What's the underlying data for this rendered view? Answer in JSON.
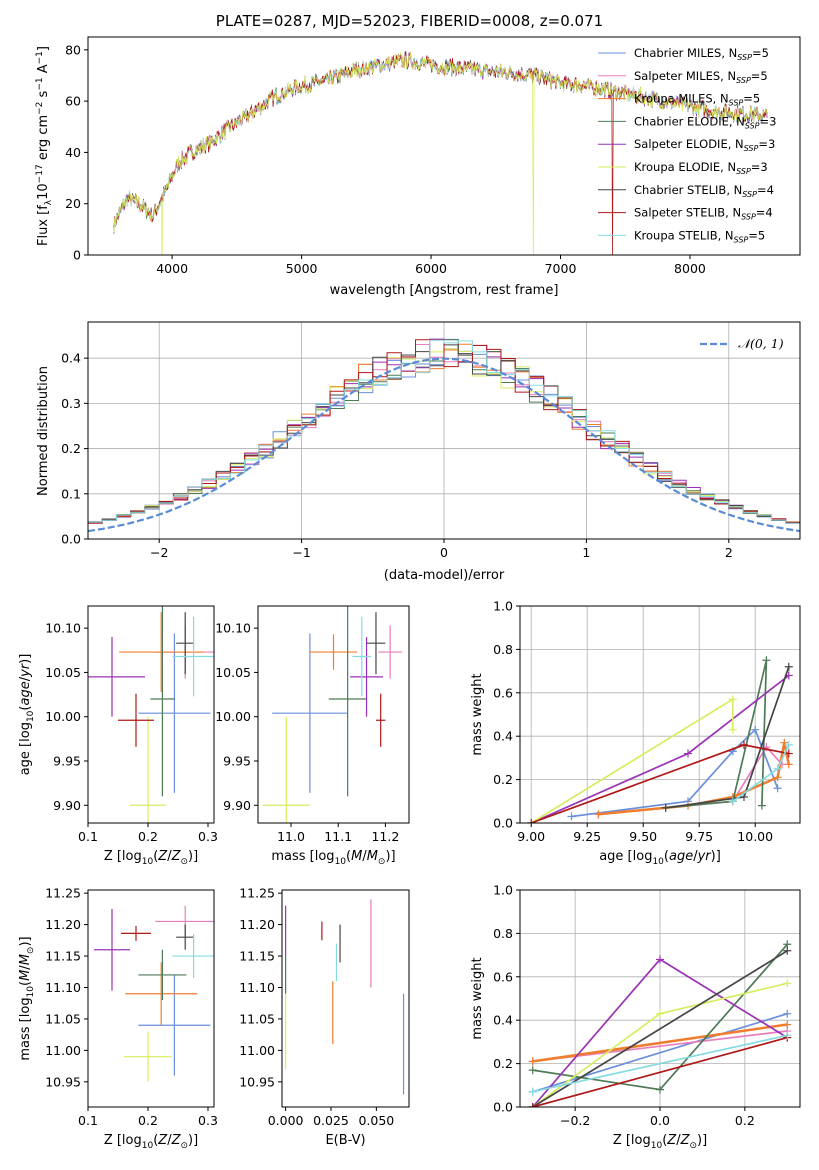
{
  "title": "PLATE=0287, MJD=52023, FIBERID=0008, z=0.071",
  "colors": [
    "#6a8fdb",
    "#e87dbb",
    "#f07d2e",
    "#4e7a55",
    "#9b32b5",
    "#d5ee5e",
    "#454545",
    "#b01818",
    "#86dbe0"
  ],
  "legend_gauss": "N(0,1)",
  "chart_data": [
    {
      "type": "line",
      "id": "spectrum",
      "title": "PLATE=0287, MJD=52023, FIBERID=0008, z=0.071",
      "xlabel": "wavelength [Angstrom, rest frame]",
      "ylabel": "Flux [f_λ 10^-17 erg cm^-2 s^-1 A^-1]",
      "xlim": [
        3350,
        8850
      ],
      "ylim": [
        0,
        85
      ],
      "xticks": [
        4000,
        5000,
        6000,
        7000,
        8000
      ],
      "yticks": [
        0,
        20,
        40,
        60,
        80
      ],
      "grid": false,
      "legend": "top-right",
      "series_names": [
        "Chabrier MILES, N_SSP=5",
        "Salpeter MILES, N_SSP=5",
        "Kroupa MILES, N_SSP=5",
        "Chabrier ELODIE, N_SSP=3",
        "Salpeter ELODIE, N_SSP=3",
        "Kroupa ELODIE, N_SSP=3",
        "Chabrier STELIB, N_SSP=4",
        "Salpeter STELIB, N_SSP=4",
        "Kroupa STELIB, N_SSP=5"
      ],
      "continuum_x": [
        3550,
        3650,
        3750,
        3850,
        3950,
        4050,
        4150,
        4300,
        4450,
        4600,
        4800,
        5000,
        5200,
        5400,
        5600,
        5800,
        6000,
        6200,
        6400,
        6600,
        6800,
        7000,
        7200,
        7400,
        7600,
        7800,
        8000,
        8200,
        8400,
        8600
      ],
      "continuum_y": [
        12,
        22,
        20,
        15,
        25,
        36,
        40,
        44,
        50,
        55,
        62,
        66,
        68,
        72,
        74,
        76,
        74,
        73,
        72,
        71,
        70,
        67,
        66,
        64,
        62,
        60,
        58,
        56,
        55,
        54
      ]
    },
    {
      "type": "histogram",
      "id": "residuals",
      "xlabel": "(data-model)/error",
      "ylabel": "Normed distribution",
      "xlim": [
        -2.5,
        2.5
      ],
      "ylim": [
        0,
        0.48
      ],
      "xticks": [
        -2,
        -1,
        0,
        1,
        2
      ],
      "yticks": [
        0.0,
        0.1,
        0.2,
        0.3,
        0.4
      ],
      "grid": true,
      "legend": "top-right",
      "bin_width": 0.1,
      "reference": {
        "name": "N(0,1)",
        "mean": 0,
        "sigma": 1
      }
    },
    {
      "type": "scatter",
      "id": "age-vs-z",
      "xlabel": "Z [log10(Z/Z⊙)]",
      "ylabel": "age [log10(age/yr)]",
      "xlim": [
        0.1,
        0.31
      ],
      "ylim": [
        9.88,
        10.125
      ],
      "xticks": [
        0.1,
        0.2,
        0.3
      ],
      "yticks": [
        9.9,
        9.95,
        10.0,
        10.05,
        10.1
      ],
      "points": [
        {
          "x": 0.244,
          "y": 10.004,
          "xerr": 0.06,
          "yerr": 0.09
        },
        {
          "x": 0.262,
          "y": 10.073,
          "xerr": 0.05,
          "yerr": 0.03
        },
        {
          "x": 0.222,
          "y": 10.073,
          "xerr": 0.07,
          "yerr": 0.045
        },
        {
          "x": 0.224,
          "y": 10.02,
          "xerr": 0.02,
          "yerr": 0.11
        },
        {
          "x": 0.14,
          "y": 10.045,
          "xerr": 0.055,
          "yerr": 0.045
        },
        {
          "x": 0.2,
          "y": 9.9,
          "xerr": 0.03,
          "yerr": 0.1
        },
        {
          "x": 0.262,
          "y": 10.083,
          "xerr": 0.015,
          "yerr": 0.035
        },
        {
          "x": 0.18,
          "y": 9.996,
          "xerr": 0.03,
          "yerr": 0.03
        },
        {
          "x": 0.276,
          "y": 10.068,
          "xerr": 0.035,
          "yerr": 0.045
        }
      ]
    },
    {
      "type": "scatter",
      "id": "age-vs-mass",
      "xlabel": "mass [log10(M/M⊙)]",
      "xlim": [
        10.93,
        11.25
      ],
      "ylim": [
        9.88,
        10.125
      ],
      "xticks": [
        11.0,
        11.1,
        11.2
      ],
      "yticks": [
        9.9,
        9.95,
        10.0,
        10.05,
        10.1
      ],
      "points": [
        {
          "x": 11.04,
          "y": 10.004,
          "xerr": 0.08,
          "yerr": 0.09
        },
        {
          "x": 11.21,
          "y": 10.073,
          "xerr": 0.025,
          "yerr": 0.03
        },
        {
          "x": 11.09,
          "y": 10.073,
          "xerr": 0.05,
          "yerr": 0.02
        },
        {
          "x": 11.12,
          "y": 10.02,
          "xerr": 0.04,
          "yerr": 0.11
        },
        {
          "x": 11.16,
          "y": 10.045,
          "xerr": 0.035,
          "yerr": 0.045
        },
        {
          "x": 10.99,
          "y": 9.9,
          "xerr": 0.05,
          "yerr": 0.1
        },
        {
          "x": 11.18,
          "y": 10.083,
          "xerr": 0.02,
          "yerr": 0.035
        },
        {
          "x": 11.19,
          "y": 9.996,
          "xerr": 0.01,
          "yerr": 0.03
        },
        {
          "x": 11.15,
          "y": 10.068,
          "xerr": 0.02,
          "yerr": 0.045
        }
      ]
    },
    {
      "type": "line",
      "id": "mass-weight-vs-age",
      "xlabel": "age [log10(age/yr)]",
      "ylabel": "mass weight",
      "xlim": [
        8.95,
        10.2
      ],
      "ylim": [
        0,
        1.0
      ],
      "xticks": [
        9.0,
        9.25,
        9.5,
        9.75,
        10.0
      ],
      "yticks": [
        0.0,
        0.2,
        0.4,
        0.6,
        0.8,
        1.0
      ],
      "xtick_labels": [
        "9.00",
        "9.25",
        "9.50",
        "9.75",
        "10.00"
      ],
      "grid": true,
      "series": [
        {
          "x": [
            9.18,
            9.7,
            9.9,
            10.0,
            10.1
          ],
          "y": [
            0.03,
            0.1,
            0.33,
            0.43,
            0.16
          ]
        },
        {
          "x": [
            9.3,
            9.6,
            9.9,
            10.05,
            10.12
          ],
          "y": [
            0.04,
            0.07,
            0.1,
            0.35,
            0.27
          ]
        },
        {
          "x": [
            9.3,
            9.7,
            9.9,
            10.1,
            10.13,
            10.15
          ],
          "y": [
            0.04,
            0.08,
            0.12,
            0.21,
            0.37,
            0.27
          ]
        },
        {
          "x": [
            9.6,
            9.9,
            10.05,
            10.03
          ],
          "y": [
            0.07,
            0.1,
            0.75,
            0.08
          ]
        },
        {
          "x": [
            9.0,
            9.7,
            10.15
          ],
          "y": [
            0.0,
            0.32,
            0.68
          ]
        },
        {
          "x": [
            9.0,
            9.9,
            9.9
          ],
          "y": [
            0.0,
            0.57,
            0.43
          ]
        },
        {
          "x": [
            9.6,
            9.95,
            10.15
          ],
          "y": [
            0.07,
            0.12,
            0.72
          ]
        },
        {
          "x": [
            9.0,
            9.95,
            10.15
          ],
          "y": [
            0.0,
            0.36,
            0.32
          ]
        },
        {
          "x": [
            9.9,
            10.1,
            10.15
          ],
          "y": [
            0.1,
            0.25,
            0.36
          ]
        }
      ]
    },
    {
      "type": "scatter",
      "id": "mass-vs-z",
      "xlabel": "Z [log10(Z/Z⊙)]",
      "ylabel": "mass [log10(M/M⊙)]",
      "xlim": [
        0.1,
        0.31
      ],
      "ylim": [
        10.91,
        11.255
      ],
      "xticks": [
        0.1,
        0.2,
        0.3
      ],
      "yticks": [
        10.95,
        11.0,
        11.05,
        11.1,
        11.15,
        11.2,
        11.25
      ],
      "points": [
        {
          "x": 0.244,
          "y": 11.04,
          "xerr": 0.06,
          "yerr": 0.08
        },
        {
          "x": 0.262,
          "y": 11.205,
          "xerr": 0.05,
          "yerr": 0.025
        },
        {
          "x": 0.222,
          "y": 11.09,
          "xerr": 0.06,
          "yerr": 0.05
        },
        {
          "x": 0.224,
          "y": 11.12,
          "xerr": 0.04,
          "yerr": 0.04
        },
        {
          "x": 0.14,
          "y": 11.16,
          "xerr": 0.03,
          "yerr": 0.065
        },
        {
          "x": 0.2,
          "y": 10.99,
          "xerr": 0.04,
          "yerr": 0.04
        },
        {
          "x": 0.262,
          "y": 11.18,
          "xerr": 0.015,
          "yerr": 0.02
        },
        {
          "x": 0.18,
          "y": 11.186,
          "xerr": 0.025,
          "yerr": 0.012
        },
        {
          "x": 0.276,
          "y": 11.15,
          "xerr": 0.035,
          "yerr": 0.035
        }
      ]
    },
    {
      "type": "scatter",
      "id": "mass-vs-ebv",
      "xlabel": "E(B-V)",
      "xlim": [
        -0.002,
        0.068
      ],
      "ylim": [
        10.91,
        11.255
      ],
      "xticks": [
        0.0,
        0.025,
        0.05
      ],
      "yticks": [
        10.95,
        11.0,
        11.05,
        11.1,
        11.15,
        11.2,
        11.25
      ],
      "xtick_labels": [
        "0.000",
        "0.025",
        "0.050"
      ],
      "points": [
        {
          "x": 0.065,
          "y": 11.01,
          "yerr": 0.08
        },
        {
          "x": 0.047,
          "y": 11.17,
          "yerr": 0.07
        },
        {
          "x": 0.026,
          "y": 11.06,
          "yerr": 0.05
        },
        {
          "x": 0.0,
          "y": 11.12,
          "yerr": 0.03
        },
        {
          "x": 0.0,
          "y": 11.19,
          "yerr": 0.04
        },
        {
          "x": 0.0,
          "y": 11.03,
          "yerr": 0.06
        },
        {
          "x": 0.03,
          "y": 11.17,
          "yerr": 0.03
        },
        {
          "x": 0.02,
          "y": 11.19,
          "yerr": 0.015
        },
        {
          "x": 0.028,
          "y": 11.14,
          "yerr": 0.03
        }
      ]
    },
    {
      "type": "line",
      "id": "mass-weight-vs-z",
      "xlabel": "Z [log10(Z/Z⊙)]",
      "ylabel": "mass weight",
      "xlim": [
        -0.33,
        0.33
      ],
      "ylim": [
        0,
        1.0
      ],
      "xticks": [
        -0.2,
        0.0,
        0.2
      ],
      "yticks": [
        0.0,
        0.2,
        0.4,
        0.6,
        0.8,
        1.0
      ],
      "xtick_labels": [
        "−0.2",
        "0.0",
        "0.2"
      ],
      "grid": true,
      "series": [
        {
          "x": [
            -0.3,
            0.3
          ],
          "y": [
            0.07,
            0.43
          ]
        },
        {
          "x": [
            -0.3,
            0.3
          ],
          "y": [
            0.21,
            0.35
          ]
        },
        {
          "x": [
            -0.3,
            0.3
          ],
          "y": [
            0.21,
            0.38
          ]
        },
        {
          "x": [
            -0.3,
            0.0,
            0.3
          ],
          "y": [
            0.17,
            0.08,
            0.75
          ]
        },
        {
          "x": [
            -0.3,
            0.0,
            0.3
          ],
          "y": [
            0.0,
            0.68,
            0.32
          ]
        },
        {
          "x": [
            -0.3,
            0.0,
            0.3
          ],
          "y": [
            0.0,
            0.43,
            0.57
          ]
        },
        {
          "x": [
            -0.3,
            0.3
          ],
          "y": [
            0.0,
            0.72
          ]
        },
        {
          "x": [
            -0.3,
            0.3
          ],
          "y": [
            0.0,
            0.32
          ]
        },
        {
          "x": [
            -0.3,
            0.3
          ],
          "y": [
            0.07,
            0.33
          ]
        }
      ]
    }
  ]
}
